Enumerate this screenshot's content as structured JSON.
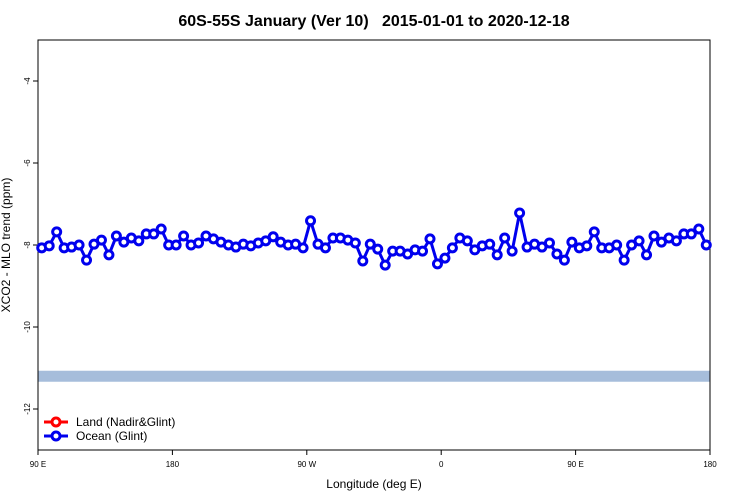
{
  "chart_data": {
    "type": "line",
    "title": "60S-55S January (Ver 10)   2015-01-01 to 2020-12-18",
    "xlabel": "Longitude (deg E)",
    "ylabel": "XCO2 - MLO trend (ppm)",
    "xlim": [
      90,
      540
    ],
    "ylim": [
      -13,
      -3
    ],
    "xticks": [
      {
        "value": 90,
        "label": "90 E"
      },
      180,
      {
        "value": 270,
        "label": "90 W"
      },
      {
        "value": 360,
        "label": "0"
      },
      {
        "value": 450,
        "label": "90 E"
      },
      {
        "value": 540,
        "label": "180"
      }
    ],
    "yticks": [
      -12,
      -10,
      -8,
      -6,
      -4
    ],
    "reference_band": {
      "value": -11.2,
      "color": "#a6bddb"
    },
    "legend": "bottom-left",
    "x": [
      92.5,
      97.5,
      102.5,
      107.5,
      112.5,
      117.5,
      122.5,
      127.5,
      132.5,
      137.5,
      142.5,
      147.5,
      152.5,
      157.5,
      162.5,
      167.5,
      172.5,
      177.5,
      182.5,
      187.5,
      192.5,
      197.5,
      202.5,
      207.5,
      212.5,
      217.5,
      222.5,
      227.5,
      232.5,
      237.5,
      242.5,
      247.5,
      252.5,
      257.5,
      262.5,
      267.5,
      272.5,
      277.5,
      282.5,
      287.5,
      292.5,
      297.5,
      302.5,
      307.5,
      312.5,
      317.5,
      322.5,
      327.5,
      332.5,
      337.5,
      342.5,
      347.5,
      352.5,
      357.5,
      362.5,
      367.5,
      372.5,
      377.5,
      382.5,
      387.5,
      392.5,
      397.5,
      402.5,
      407.5,
      412.5,
      417.5,
      422.5,
      427.5,
      432.5,
      437.5,
      442.5,
      447.5,
      452.5,
      457.5,
      462.5,
      467.5,
      472.5,
      477.5,
      482.5,
      487.5,
      492.5,
      497.5,
      502.5,
      507.5,
      512.5,
      517.5,
      522.5,
      527.5,
      532.5,
      537.5
    ],
    "series": [
      {
        "name": "Land (Nadir&Glint)",
        "color": "#ff0000",
        "values": [
          null,
          null,
          null,
          null,
          null,
          null,
          null,
          null,
          null,
          null,
          null,
          null,
          null,
          null,
          null,
          null,
          null,
          null,
          null,
          null,
          null,
          null,
          null,
          null,
          null,
          null,
          null,
          null,
          null,
          null,
          null,
          null,
          null,
          null,
          null,
          null,
          null,
          null,
          null,
          null,
          null,
          null,
          null,
          null,
          null,
          null,
          null,
          null,
          null,
          null,
          null,
          null,
          null,
          null,
          null,
          null,
          null,
          null,
          null,
          null,
          null,
          null,
          null,
          null,
          null,
          null,
          null,
          null,
          null,
          null,
          null,
          null,
          null,
          null,
          null,
          null,
          null,
          null,
          null,
          null,
          null,
          null,
          null,
          null,
          null,
          null,
          null,
          null,
          null,
          null
        ]
      },
      {
        "name": "Ocean (Glint)",
        "color": "#0000ee",
        "values": [
          -8.07,
          -8.02,
          -7.68,
          -8.07,
          -8.05,
          -8.0,
          -8.37,
          -7.98,
          -7.88,
          -8.24,
          -7.78,
          -7.93,
          -7.83,
          -7.9,
          -7.73,
          -7.73,
          -7.61,
          -8.0,
          -8.0,
          -7.78,
          -8.0,
          -7.95,
          -7.78,
          -7.85,
          -7.93,
          -8.0,
          -8.05,
          -7.98,
          -8.02,
          -7.95,
          -7.9,
          -7.8,
          -7.93,
          -8.0,
          -7.98,
          -8.07,
          -7.41,
          -7.98,
          -8.07,
          -7.83,
          -7.83,
          -7.88,
          -7.95,
          -8.39,
          -7.98,
          -8.1,
          -8.49,
          -8.15,
          -8.15,
          -8.22,
          -8.12,
          -8.15,
          -7.85,
          -8.46,
          -8.32,
          -8.07,
          -7.83,
          -7.9,
          -8.12,
          -8.02,
          -7.98,
          -8.24,
          -7.83,
          -8.15,
          -7.22,
          -8.05,
          -7.98,
          -8.05,
          -7.95,
          -8.22,
          -8.37,
          -7.93,
          -8.07,
          -8.02,
          -7.68,
          -8.07,
          -8.07,
          -8.0,
          -8.37,
          -8.0,
          -7.9,
          -8.24,
          -7.78,
          -7.93,
          -7.83,
          -7.9,
          -7.73,
          -7.73,
          -7.61,
          -8.0
        ]
      }
    ]
  }
}
